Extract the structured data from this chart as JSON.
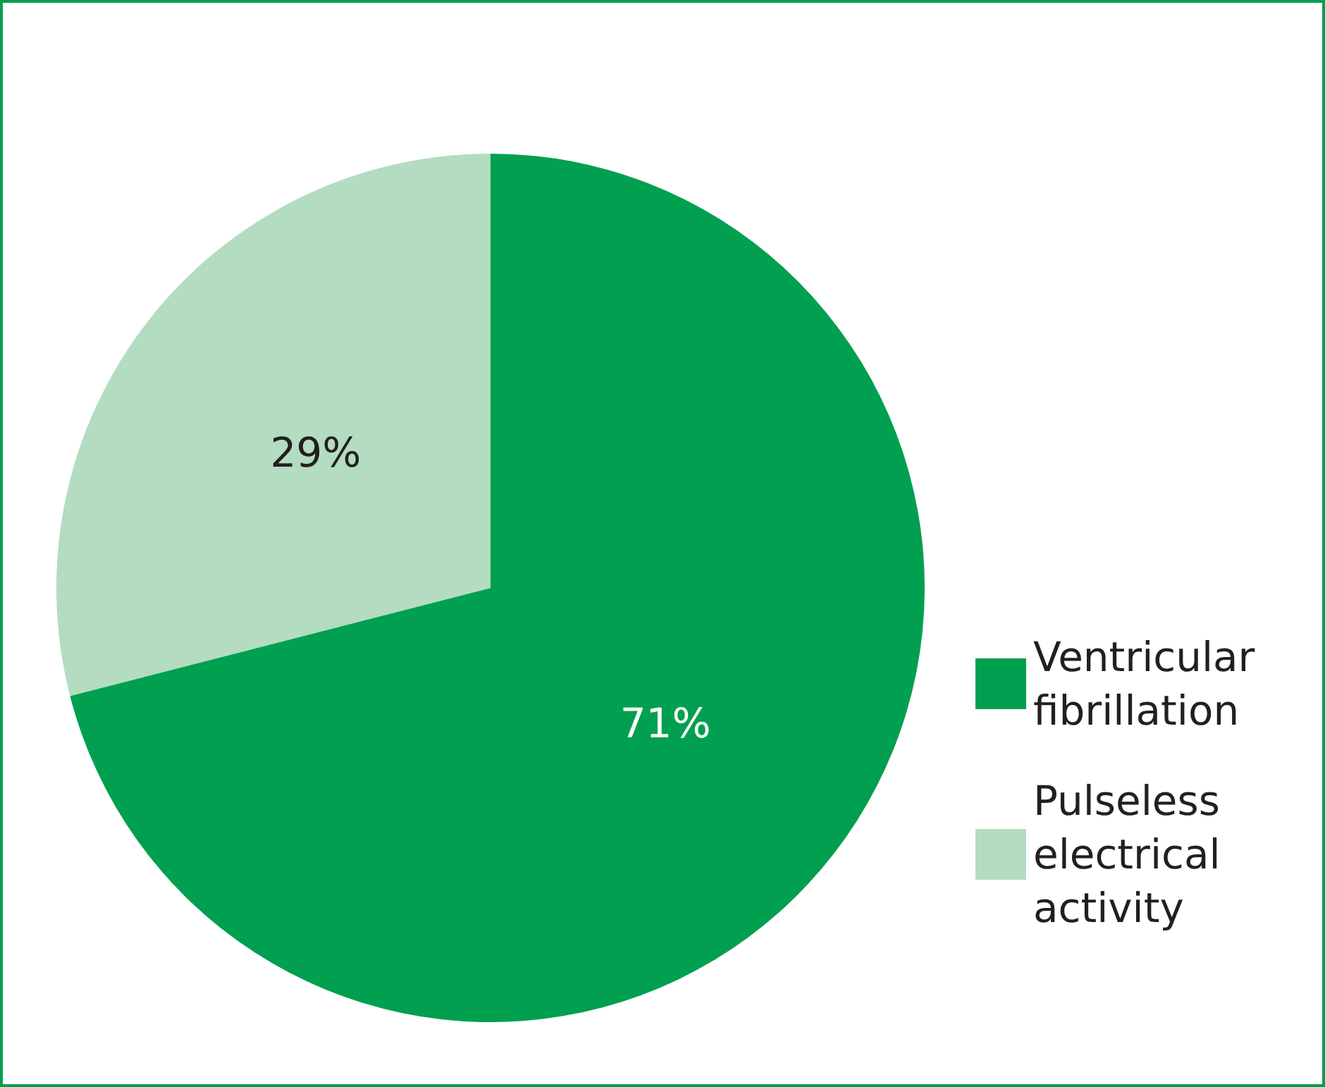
{
  "chart_data": {
    "type": "pie",
    "categories": [
      "Ventricular fibrillation",
      "Pulseless electrical activity"
    ],
    "values": [
      71,
      29
    ],
    "colors": [
      "#00a050",
      "#b3dcc1"
    ],
    "value_labels": [
      "71%",
      "29%"
    ],
    "legend": "right"
  }
}
